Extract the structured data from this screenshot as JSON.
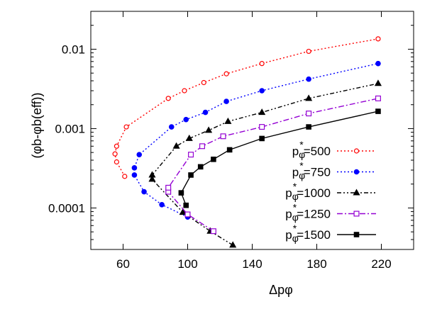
{
  "chart_data": {
    "type": "line",
    "xlabel": "Δpφ",
    "ylabel": "(φb-φb(eff))",
    "xlim": [
      40,
      240
    ],
    "ylim": [
      3e-05,
      0.03
    ],
    "y_scale": "log",
    "x_ticks": [
      60,
      100,
      140,
      180,
      220
    ],
    "y_ticks": [
      0.0001,
      0.001,
      0.01
    ],
    "y_tick_labels": [
      "0.0001",
      "0.001",
      "0.01"
    ],
    "grid": false,
    "legend_position": "bottom-right",
    "series": [
      {
        "name": "pφ*=500",
        "legend": {
          "base": "p",
          "sub": "φ",
          "sup": "*",
          "rest": "=500"
        },
        "color": "#ff0000",
        "marker": "open-circle",
        "line_style": "dotted",
        "points": [
          [
            61,
            0.00025
          ],
          [
            56,
            0.00038
          ],
          [
            55,
            0.00048
          ],
          [
            56,
            0.0006
          ],
          [
            62,
            0.00105
          ],
          [
            88,
            0.0024
          ],
          [
            98,
            0.003
          ],
          [
            110,
            0.0038
          ],
          [
            124,
            0.0049
          ],
          [
            146,
            0.0066
          ],
          [
            175,
            0.0094
          ],
          [
            218,
            0.0135
          ]
        ]
      },
      {
        "name": "pφ*=750",
        "legend": {
          "base": "p",
          "sub": "φ",
          "sup": "*",
          "rest": "=750"
        },
        "color": "#0000ff",
        "marker": "filled-circle",
        "line_style": "dotted",
        "points": [
          [
            100,
            7.7e-05
          ],
          [
            84,
            0.00011
          ],
          [
            73,
            0.00016
          ],
          [
            67,
            0.00026
          ],
          [
            67,
            0.00032
          ],
          [
            70,
            0.00047
          ],
          [
            90,
            0.00105
          ],
          [
            99,
            0.0013
          ],
          [
            111,
            0.0016
          ],
          [
            124,
            0.0022
          ],
          [
            146,
            0.003
          ],
          [
            175,
            0.0042
          ],
          [
            218,
            0.0066
          ]
        ]
      },
      {
        "name": "pφ*=1000",
        "legend": {
          "base": "p",
          "sub": "φ",
          "sup": "*",
          "rest": "=1000"
        },
        "color": "#000000",
        "marker": "filled-triangle",
        "line_style": "dash-dot-dot",
        "points": [
          [
            128,
            3.4e-05
          ],
          [
            114,
            5.1e-05
          ],
          [
            97,
            8.8e-05
          ],
          [
            78,
            0.00023
          ],
          [
            78,
            0.00026
          ],
          [
            93,
            0.0006
          ],
          [
            101,
            0.00075
          ],
          [
            113,
            0.00095
          ],
          [
            125,
            0.00123
          ],
          [
            146,
            0.0016
          ],
          [
            175,
            0.0024
          ],
          [
            218,
            0.0037
          ]
        ]
      },
      {
        "name": "pφ*=1250",
        "legend": {
          "base": "p",
          "sub": "φ",
          "sup": "*",
          "rest": "=1250"
        },
        "color": "#9400d3",
        "marker": "open-square",
        "line_style": "dash-dot",
        "points": [
          [
            116,
            5.1e-05
          ],
          [
            100,
            8.3e-05
          ],
          [
            88,
            0.00016
          ],
          [
            88,
            0.00018
          ],
          [
            102,
            0.00047
          ],
          [
            109,
            0.0006
          ],
          [
            122,
            0.0008
          ],
          [
            146,
            0.00105
          ],
          [
            175,
            0.00155
          ],
          [
            218,
            0.0024
          ]
        ]
      },
      {
        "name": "pφ*=1500",
        "legend": {
          "base": "p",
          "sub": "φ",
          "sup": "*",
          "rest": "=1500"
        },
        "color": "#000000",
        "marker": "filled-square",
        "line_style": "solid",
        "points": [
          [
            99,
            0.000108
          ],
          [
            96,
            0.000155
          ],
          [
            102,
            0.00026
          ],
          [
            108,
            0.00033
          ],
          [
            116,
            0.00041
          ],
          [
            126,
            0.00054
          ],
          [
            146,
            0.00075
          ],
          [
            175,
            0.00105
          ],
          [
            218,
            0.00165
          ]
        ]
      }
    ]
  }
}
